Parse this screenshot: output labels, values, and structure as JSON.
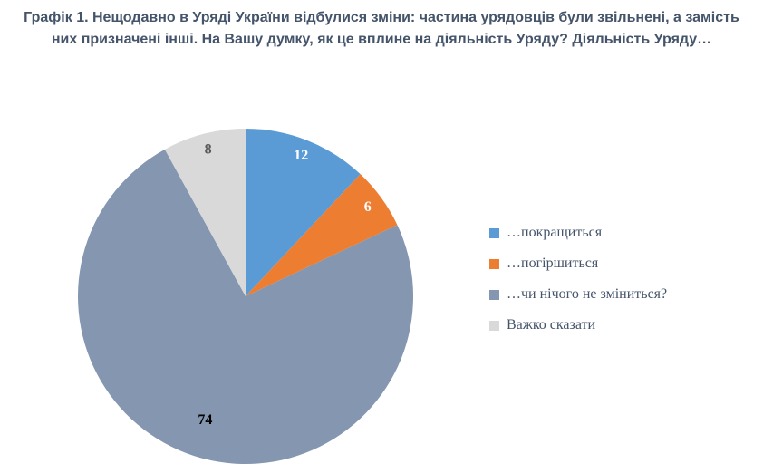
{
  "title": "Графік 1. Нещодавно в Уряді України відбулися зміни: частина урядовців були звільнені, а замість них призначені інші. На Вашу думку, як це вплине на діяльність Уряду? Діяльність Уряду…",
  "chart_data": {
    "type": "pie",
    "title": "Графік 1. Нещодавно в Уряді України відбулися зміни: частина урядовців були звільнені, а замість них призначені інші. На Вашу думку, як це вплине на діяльність Уряду? Діяльність Уряду…",
    "labels": [
      "…покращиться",
      "…погіршиться",
      "…чи нічого не зміниться?",
      "Важко сказати"
    ],
    "values": [
      12,
      6,
      74,
      8
    ],
    "colors": [
      "#5B9BD5",
      "#ED7D31",
      "#8496B0",
      "#D9D9D9"
    ],
    "data_label_colors": [
      "#FFFFFF",
      "#FFFFFF",
      "#000000",
      "#595959"
    ],
    "start_angle_deg": 0,
    "direction": "clockwise",
    "legend_position": "right",
    "units": "percent"
  }
}
